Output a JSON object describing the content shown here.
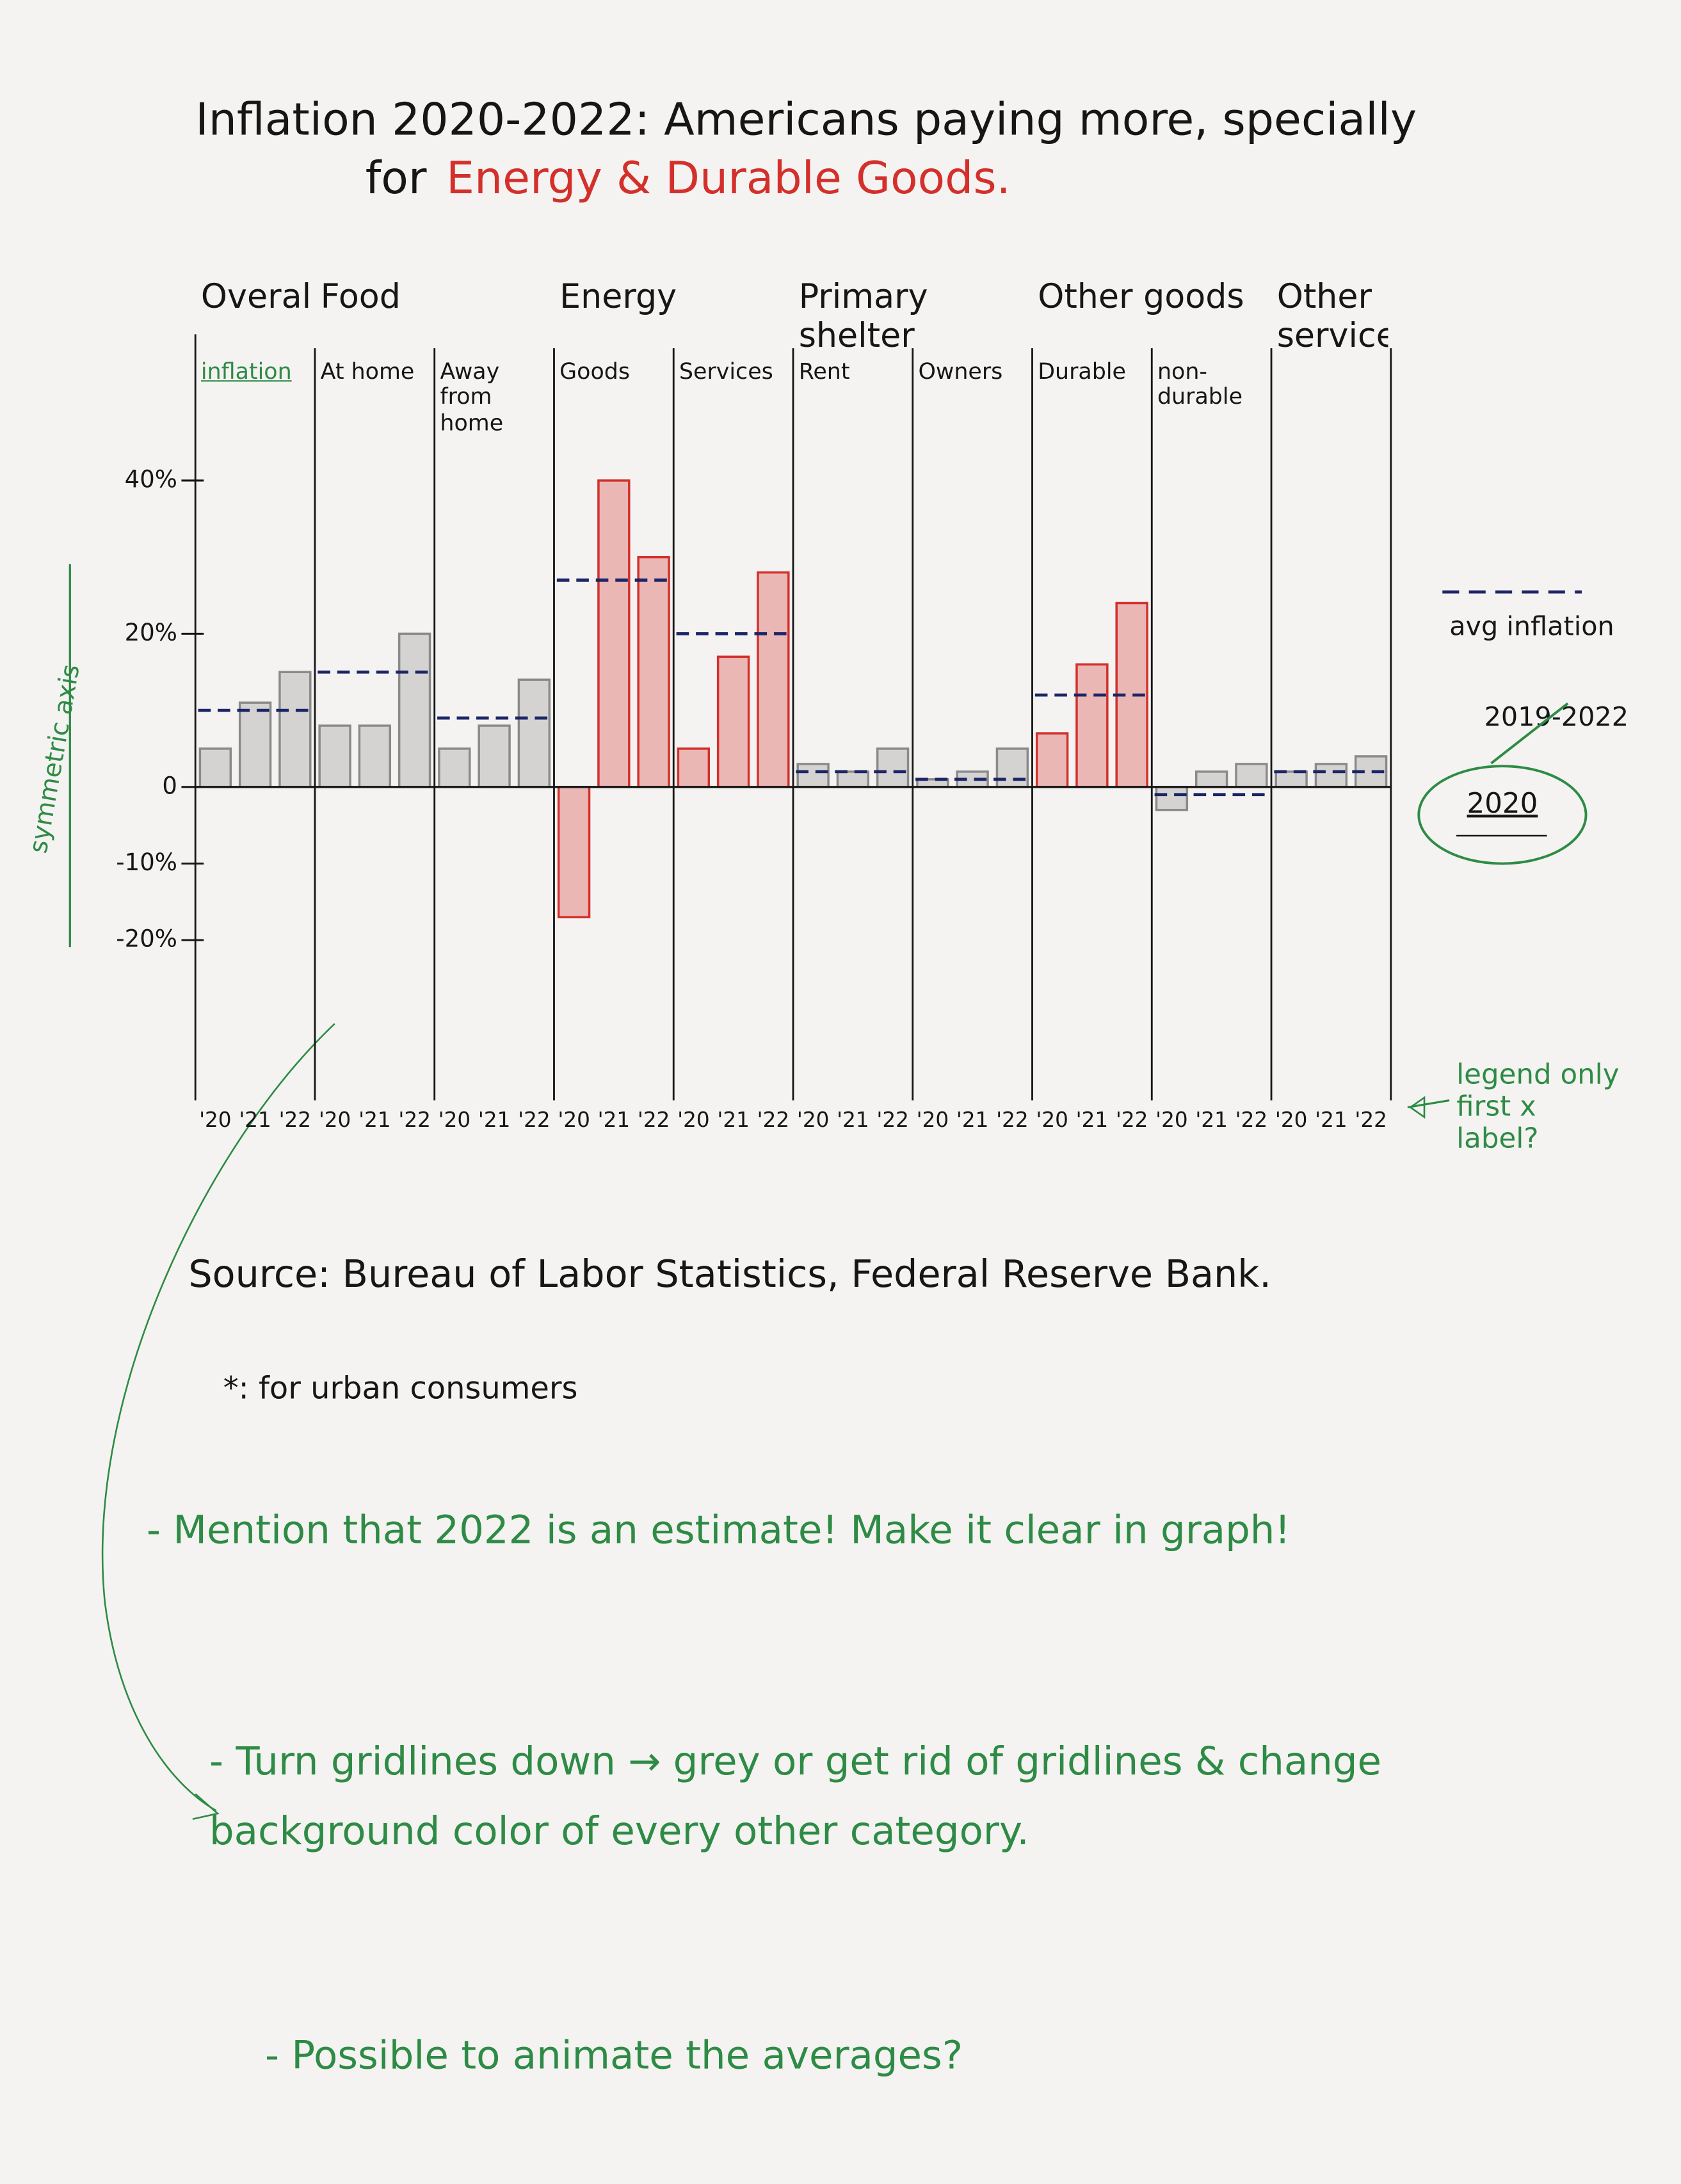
{
  "chart_data": {
    "type": "bar",
    "title": "Inflation 2020-2022: Americans paying more, specially",
    "title_line2": "for",
    "title_highlight": "Energy & Durable Goods.",
    "groups": [
      {
        "label": "Overall*",
        "panels": [
          {
            "label": "inflation",
            "color": "#8a8a8a",
            "values": [
              5,
              11,
              15
            ],
            "avg": 10
          }
        ]
      },
      {
        "label": "Food",
        "panels": [
          {
            "label": "At home",
            "color": "#8a8a8a",
            "values": [
              8,
              8,
              20
            ],
            "avg": 15
          },
          {
            "label": "Away from home",
            "color": "#8a8a8a",
            "values": [
              5,
              8,
              14
            ],
            "avg": 9
          }
        ]
      },
      {
        "label": "Energy",
        "panels": [
          {
            "label": "Goods",
            "color": "#d3302c",
            "values": [
              -17,
              40,
              30
            ],
            "avg": 27
          },
          {
            "label": "Services",
            "color": "#d3302c",
            "values": [
              5,
              17,
              28
            ],
            "avg": 20
          }
        ]
      },
      {
        "label": "Primary shelter",
        "panels": [
          {
            "label": "Rent",
            "color": "#8a8a8a",
            "values": [
              3,
              2,
              5
            ],
            "avg": 2
          },
          {
            "label": "Owners",
            "color": "#8a8a8a",
            "values": [
              1,
              2,
              5
            ],
            "avg": 1
          }
        ]
      },
      {
        "label": "Other goods",
        "panels": [
          {
            "label": "Durable",
            "color": "#d3302c",
            "values": [
              7,
              16,
              24
            ],
            "avg": 12
          },
          {
            "label": "non-durable",
            "color": "#8a8a8a",
            "values": [
              -3,
              2,
              3
            ],
            "avg": -1
          }
        ]
      },
      {
        "label": "Other services",
        "panels": [
          {
            "color": "#8a8a8a",
            "values": [
              2,
              3,
              4
            ],
            "avg": 2
          }
        ]
      }
    ],
    "x_labels": [
      "'20",
      "'21",
      "'22"
    ],
    "ylim": [
      -25,
      45
    ],
    "yticks": [
      {
        "value": 40,
        "label": "40%"
      },
      {
        "value": 20,
        "label": "20%"
      },
      0,
      {
        "value": -10,
        "label": "-10%"
      },
      {
        "value": -20,
        "label": "-20%"
      }
    ],
    "grid": false,
    "legend": {
      "avg_label": "avg inflation",
      "period_struck": "2019-2022",
      "period": "2020",
      "avg_color": "#1c2566"
    },
    "annotations": {
      "axis_note": "symmetric axis",
      "label_note": "legend only first x label?"
    }
  },
  "notes": {
    "source": "Source: Bureau of Labor Statistics, Federal Reserve Bank.",
    "footnote": "*: for urban consumers",
    "comments": [
      "- Mention that 2022 is an estimate! Make it clear in graph!",
      "- Turn gridlines down → grey or get rid of gridlines & change background color of every other category.",
      "- Possible to animate the averages?"
    ]
  }
}
